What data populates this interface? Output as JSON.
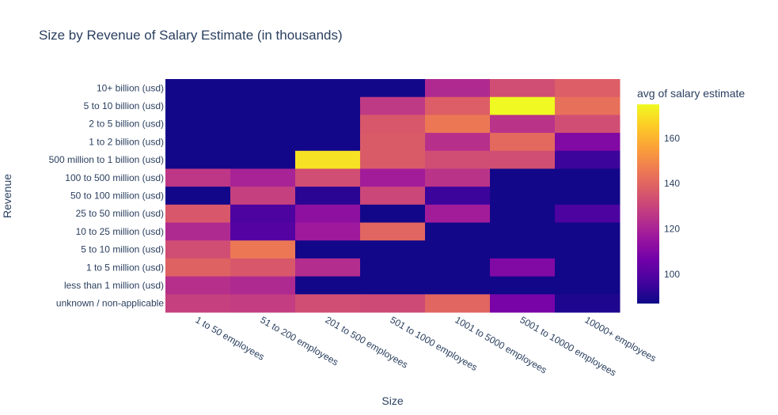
{
  "chart_data": {
    "type": "heatmap",
    "title": "Size by Revenue of Salary Estimate (in thousands)",
    "xlabel": "Size",
    "ylabel": "Revenue",
    "x_categories": [
      "1 to 50 employees",
      "51 to 200 employees",
      "201 to 500 employees",
      "501 to 1000 employees",
      "1001 to 5000 employees",
      "5001 to 10000 employees",
      "10000+ employees"
    ],
    "y_categories": [
      "10+ billion (usd)",
      "5 to 10 billion (usd)",
      "2 to 5 billion (usd)",
      "1 to 2 billion (usd)",
      "500 million to 1 billion (usd)",
      "100 to 500 million (usd)",
      "50 to 100 million (usd)",
      "25 to 50 million (usd)",
      "10 to 25 million (usd)",
      "5 to 10 million (usd)",
      "1 to 5 million (usd)",
      "less than 1 million (usd)",
      "unknown / non-applicable"
    ],
    "z": [
      [
        88,
        88,
        88,
        88,
        122,
        133,
        138
      ],
      [
        88,
        88,
        88,
        127,
        138,
        175,
        143
      ],
      [
        88,
        88,
        88,
        136,
        145,
        125,
        133
      ],
      [
        88,
        88,
        88,
        137,
        124,
        141,
        110
      ],
      [
        88,
        88,
        170,
        137,
        133,
        133,
        95
      ],
      [
        126,
        120,
        133,
        118,
        125,
        88,
        88
      ],
      [
        88,
        129,
        92,
        131,
        95,
        88,
        88
      ],
      [
        136,
        98,
        113,
        88,
        118,
        88,
        98
      ],
      [
        122,
        100,
        117,
        140,
        88,
        88,
        88
      ],
      [
        133,
        145,
        88,
        88,
        88,
        88,
        88
      ],
      [
        139,
        136,
        123,
        88,
        88,
        110,
        88
      ],
      [
        124,
        122,
        88,
        88,
        88,
        88,
        88
      ],
      [
        129,
        128,
        133,
        132,
        140,
        108,
        90
      ]
    ],
    "colorbar": {
      "title": "avg of salary estimate",
      "ticks": [
        100,
        120,
        140,
        160
      ],
      "zmin": 87,
      "zmax": 175,
      "colorscale": [
        "#0d0887",
        "#46039f",
        "#7201a8",
        "#9c179e",
        "#bd3786",
        "#d8576b",
        "#ed7953",
        "#fb9f3a",
        "#fdca26",
        "#f0f921"
      ]
    }
  }
}
